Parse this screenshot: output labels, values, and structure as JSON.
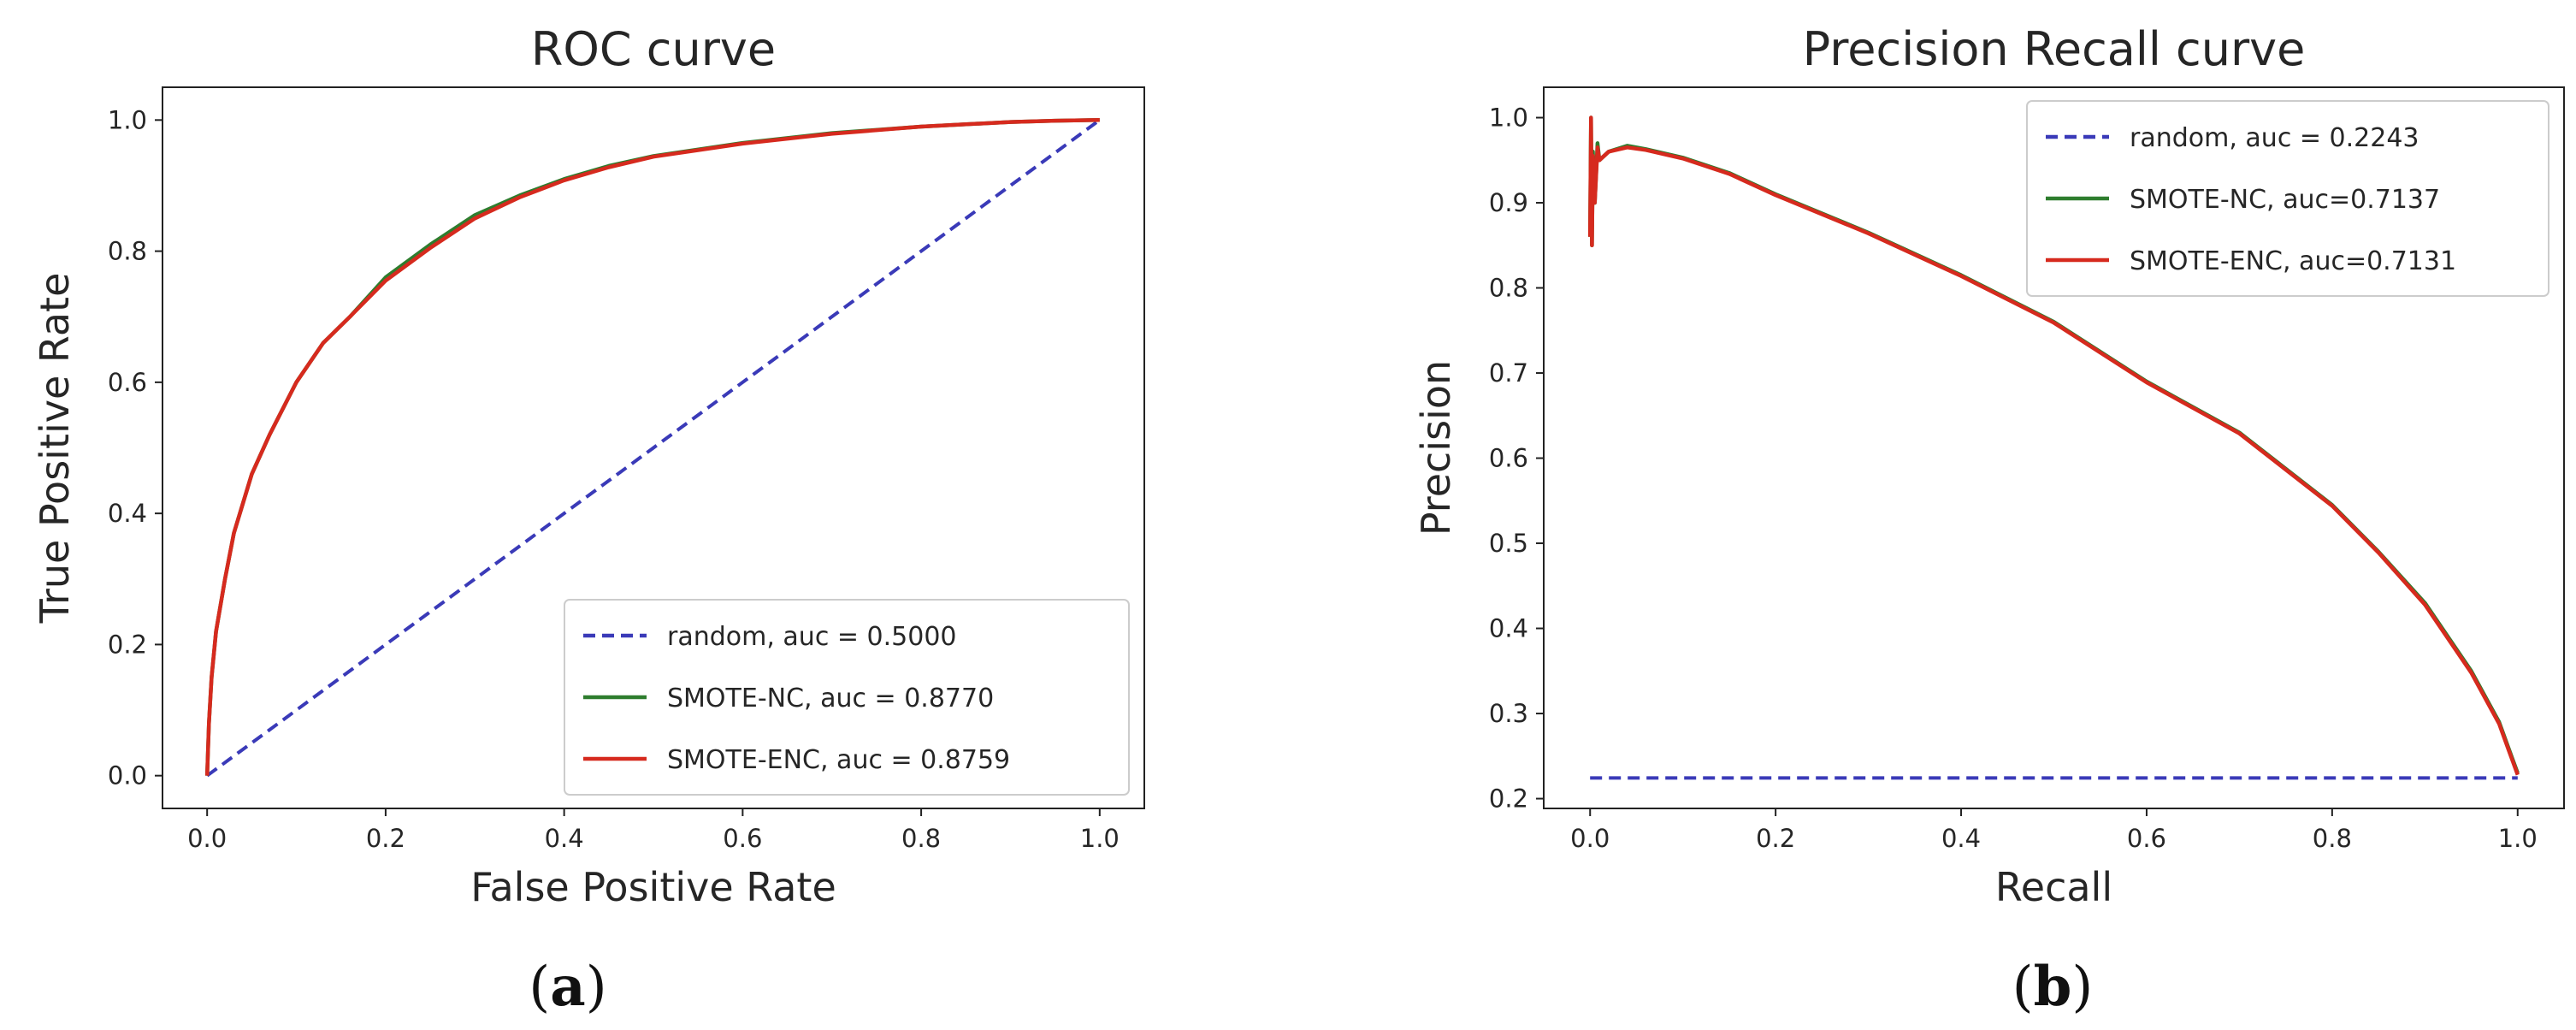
{
  "chart_data": [
    {
      "type": "line",
      "title": "ROC curve",
      "xlabel": "False Positive Rate",
      "ylabel": "True Positive Rate",
      "caption": {
        "open": "(",
        "letter": "a",
        "close": ")"
      },
      "xlim": [
        -0.05,
        1.05
      ],
      "ylim": [
        -0.05,
        1.05
      ],
      "xticks": [
        0.0,
        0.2,
        0.4,
        0.6,
        0.8,
        1.0
      ],
      "xtick_labels": [
        "0.0",
        "0.2",
        "0.4",
        "0.6",
        "0.8",
        "1.0"
      ],
      "yticks": [
        0.0,
        0.2,
        0.4,
        0.6,
        0.8,
        1.0
      ],
      "ytick_labels": [
        "0.0",
        "0.2",
        "0.4",
        "0.6",
        "0.8",
        "1.0"
      ],
      "legend_position": "lower-right",
      "series": [
        {
          "name": "random, auc = 0.5000",
          "color": "#3a3ab8",
          "dash": true,
          "x": [
            0,
            1
          ],
          "y": [
            0,
            1
          ]
        },
        {
          "name": "SMOTE-NC, auc = 0.8770",
          "color": "#2e7d2e",
          "dash": false,
          "x": [
            0,
            0.002,
            0.005,
            0.01,
            0.02,
            0.03,
            0.05,
            0.07,
            0.1,
            0.13,
            0.16,
            0.2,
            0.25,
            0.3,
            0.35,
            0.4,
            0.45,
            0.5,
            0.6,
            0.7,
            0.8,
            0.9,
            0.95,
            1.0
          ],
          "y": [
            0,
            0.08,
            0.15,
            0.22,
            0.3,
            0.37,
            0.46,
            0.52,
            0.6,
            0.66,
            0.7,
            0.76,
            0.81,
            0.855,
            0.885,
            0.91,
            0.93,
            0.945,
            0.965,
            0.98,
            0.99,
            0.997,
            0.999,
            1.0
          ]
        },
        {
          "name": "SMOTE-ENC, auc = 0.8759",
          "color": "#d62a1e",
          "dash": false,
          "x": [
            0,
            0.002,
            0.005,
            0.01,
            0.02,
            0.03,
            0.05,
            0.07,
            0.1,
            0.13,
            0.16,
            0.2,
            0.25,
            0.3,
            0.35,
            0.4,
            0.45,
            0.5,
            0.6,
            0.7,
            0.8,
            0.9,
            0.95,
            1.0
          ],
          "y": [
            0,
            0.08,
            0.15,
            0.22,
            0.3,
            0.37,
            0.46,
            0.52,
            0.6,
            0.66,
            0.7,
            0.755,
            0.805,
            0.85,
            0.882,
            0.908,
            0.928,
            0.944,
            0.964,
            0.979,
            0.99,
            0.997,
            0.999,
            1.0
          ]
        }
      ]
    },
    {
      "type": "line",
      "title": "Precision Recall curve",
      "xlabel": "Recall",
      "ylabel": "Precision",
      "caption": {
        "open": "(",
        "letter": "b",
        "close": ")"
      },
      "xlim": [
        -0.05,
        1.05
      ],
      "ylim": [
        0.1885,
        1.0357
      ],
      "xticks": [
        0.0,
        0.2,
        0.4,
        0.6,
        0.8,
        1.0
      ],
      "xtick_labels": [
        "0.0",
        "0.2",
        "0.4",
        "0.6",
        "0.8",
        "1.0"
      ],
      "yticks": [
        0.2,
        0.3,
        0.4,
        0.5,
        0.6,
        0.7,
        0.8,
        0.9,
        1.0
      ],
      "ytick_labels": [
        "0.2",
        "0.3",
        "0.4",
        "0.5",
        "0.6",
        "0.7",
        "0.8",
        "0.9",
        "1.0"
      ],
      "legend_position": "upper-right",
      "series": [
        {
          "name": "random, auc = 0.2243",
          "color": "#3a3ab8",
          "dash": true,
          "x": [
            0,
            1
          ],
          "y": [
            0.2243,
            0.2243
          ]
        },
        {
          "name": "SMOTE-NC, auc=0.7137",
          "color": "#2e7d2e",
          "dash": false,
          "x": [
            0,
            0.001,
            0.002,
            0.003,
            0.005,
            0.008,
            0.01,
            0.02,
            0.04,
            0.06,
            0.1,
            0.15,
            0.2,
            0.3,
            0.4,
            0.5,
            0.6,
            0.7,
            0.8,
            0.85,
            0.9,
            0.95,
            0.98,
            0.99,
            1.0
          ],
          "y": [
            0.86,
            1.0,
            0.85,
            0.96,
            0.9,
            0.97,
            0.95,
            0.96,
            0.967,
            0.963,
            0.953,
            0.935,
            0.91,
            0.865,
            0.815,
            0.76,
            0.69,
            0.63,
            0.545,
            0.49,
            0.43,
            0.35,
            0.29,
            0.26,
            0.23
          ]
        },
        {
          "name": "SMOTE-ENC, auc=0.7131",
          "color": "#d62a1e",
          "dash": false,
          "x": [
            0,
            0.001,
            0.002,
            0.003,
            0.005,
            0.008,
            0.01,
            0.02,
            0.04,
            0.06,
            0.1,
            0.15,
            0.2,
            0.3,
            0.4,
            0.5,
            0.6,
            0.7,
            0.8,
            0.85,
            0.9,
            0.95,
            0.98,
            0.99,
            1.0
          ],
          "y": [
            0.86,
            1.0,
            0.85,
            0.955,
            0.9,
            0.965,
            0.95,
            0.96,
            0.965,
            0.962,
            0.952,
            0.934,
            0.909,
            0.864,
            0.814,
            0.759,
            0.689,
            0.629,
            0.544,
            0.489,
            0.428,
            0.348,
            0.288,
            0.258,
            0.228
          ]
        }
      ]
    }
  ]
}
